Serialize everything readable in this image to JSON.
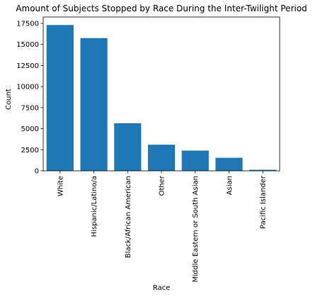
{
  "chart_data": {
    "type": "bar",
    "title": "Amount of Subjects Stopped by Race During the Inter-Twilight Period",
    "xlabel": "Race",
    "ylabel": "Count",
    "categories": [
      "White",
      "Hispanic/Latino/a",
      "Black/African American",
      "Other",
      "Middle Eastern or South Asian",
      "Asian",
      "Pacific Islander"
    ],
    "values": [
      17300,
      15750,
      5650,
      3100,
      2400,
      1550,
      120
    ],
    "ylim": [
      0,
      18250
    ],
    "yticks": [
      0,
      2500,
      5000,
      7500,
      10000,
      12500,
      15000,
      17500
    ],
    "ytick_labels": [
      "0",
      "2500",
      "5000",
      "7500",
      "10000",
      "12500",
      "15000",
      "17500"
    ],
    "grid": false,
    "bar_color": "#1f77b4"
  }
}
